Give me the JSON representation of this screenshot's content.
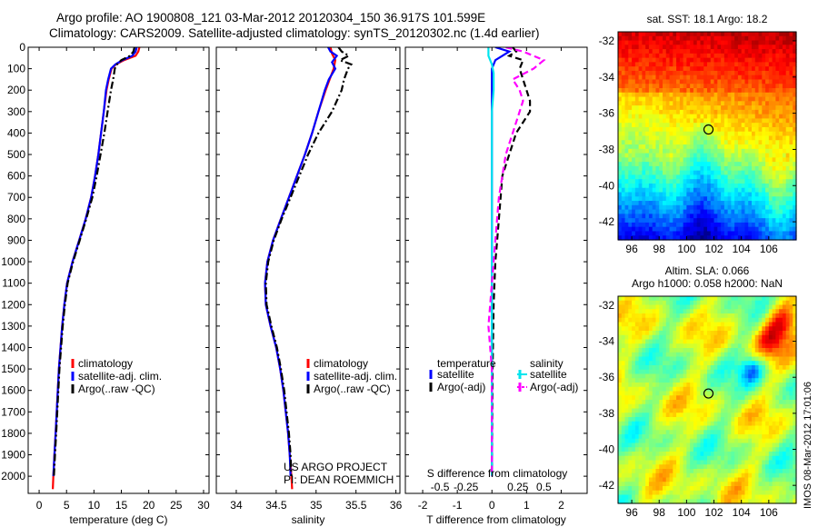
{
  "header": {
    "title_line1": "Argo profile: AO 1900808_121 03-Mar-2012 20120304_150 36.917S 101.599E",
    "title_line2": "Climatology: CARS2009. Satellite-adjusted climatology: synTS_20120302.nc (1.4d earlier)"
  },
  "stamp": "IMOS 08-Mar-2012 17:01:06",
  "colors": {
    "climatology": "#ff0000",
    "satellite_adj": "#0000ff",
    "argo": "#000000",
    "sat_s": "#00e5ee",
    "argo_s": "#ff00ff"
  },
  "chart_data": [
    {
      "id": "temperature",
      "type": "line",
      "xlabel": "temperature (deg C)",
      "ylabel": "",
      "xlim": [
        -2,
        31
      ],
      "ylim": [
        0,
        2080
      ],
      "y_inverted": true,
      "xticks": [
        0,
        5,
        10,
        15,
        20,
        25,
        30
      ],
      "yticks": [
        0,
        100,
        200,
        300,
        400,
        500,
        600,
        700,
        800,
        900,
        1000,
        1100,
        1200,
        1300,
        1400,
        1500,
        1600,
        1700,
        1800,
        1900,
        2000
      ],
      "legend": [
        "climatology",
        "satellite-adj. clim.",
        "Argo(..raw -QC)"
      ],
      "legend_colors": [
        "#ff0000",
        "#0000ff",
        "#000000"
      ],
      "series": [
        {
          "name": "climatology",
          "style": "solid",
          "color": "#ff0000",
          "points": [
            [
              18.3,
              0
            ],
            [
              18.1,
              20
            ],
            [
              17.6,
              40
            ],
            [
              15.5,
              60
            ],
            [
              14.0,
              80
            ],
            [
              13.2,
              100
            ],
            [
              12.7,
              150
            ],
            [
              12.3,
              200
            ],
            [
              11.8,
              300
            ],
            [
              11.3,
              400
            ],
            [
              10.8,
              500
            ],
            [
              10.2,
              600
            ],
            [
              9.5,
              700
            ],
            [
              8.5,
              800
            ],
            [
              7.3,
              900
            ],
            [
              6.1,
              1000
            ],
            [
              5.1,
              1100
            ],
            [
              4.6,
              1200
            ],
            [
              4.2,
              1300
            ],
            [
              3.9,
              1400
            ],
            [
              3.6,
              1500
            ],
            [
              3.4,
              1600
            ],
            [
              3.2,
              1700
            ],
            [
              3.0,
              1800
            ],
            [
              2.8,
              1900
            ],
            [
              2.6,
              2000
            ],
            [
              2.5,
              2060
            ]
          ]
        },
        {
          "name": "satellite-adj. clim.",
          "style": "solid",
          "color": "#0000ff",
          "points": [
            [
              17.8,
              0
            ],
            [
              17.6,
              20
            ],
            [
              17.0,
              40
            ],
            [
              15.2,
              60
            ],
            [
              13.9,
              80
            ],
            [
              13.1,
              100
            ],
            [
              12.6,
              150
            ],
            [
              12.2,
              200
            ],
            [
              11.8,
              300
            ],
            [
              11.3,
              400
            ],
            [
              10.8,
              500
            ],
            [
              10.2,
              600
            ],
            [
              9.5,
              700
            ],
            [
              8.5,
              800
            ],
            [
              7.3,
              900
            ],
            [
              6.1,
              1000
            ],
            [
              5.1,
              1100
            ],
            [
              4.6,
              1200
            ],
            [
              4.2,
              1300
            ],
            [
              3.9,
              1400
            ],
            [
              3.6,
              1500
            ],
            [
              3.4,
              1600
            ],
            [
              3.2,
              1700
            ],
            [
              3.0,
              1800
            ],
            [
              2.8,
              1900
            ],
            [
              2.6,
              2000
            ]
          ]
        },
        {
          "name": "Argo(..raw -QC)",
          "style": "dashdot",
          "color": "#000000",
          "points": [
            [
              17.4,
              0
            ],
            [
              17.2,
              20
            ],
            [
              16.6,
              40
            ],
            [
              15.0,
              60
            ],
            [
              14.2,
              80
            ],
            [
              13.8,
              100
            ],
            [
              13.5,
              150
            ],
            [
              13.1,
              200
            ],
            [
              12.5,
              300
            ],
            [
              11.9,
              400
            ],
            [
              11.2,
              500
            ],
            [
              10.5,
              600
            ],
            [
              9.7,
              700
            ],
            [
              8.6,
              800
            ],
            [
              7.4,
              900
            ],
            [
              6.2,
              1000
            ],
            [
              5.2,
              1100
            ],
            [
              4.7,
              1200
            ],
            [
              4.3,
              1300
            ],
            [
              4.0,
              1400
            ],
            [
              3.7,
              1500
            ],
            [
              3.5,
              1600
            ],
            [
              3.3,
              1700
            ],
            [
              3.1,
              1800
            ],
            [
              2.9,
              1900
            ],
            [
              2.7,
              2000
            ]
          ]
        }
      ]
    },
    {
      "id": "salinity",
      "type": "line",
      "xlabel": "salinity",
      "ylabel": "",
      "xlim": [
        33.75,
        36.05
      ],
      "ylim": [
        0,
        2080
      ],
      "y_inverted": true,
      "xticks": [
        34,
        34.5,
        35,
        35.5,
        36
      ],
      "legend": [
        "climatology",
        "satellite-adj. clim.",
        "Argo(..raw -QC)"
      ],
      "legend_colors": [
        "#ff0000",
        "#0000ff",
        "#000000"
      ],
      "annotation": [
        "US ARGO PROJECT",
        "PI: DEAN ROEMMICH"
      ],
      "series": [
        {
          "name": "climatology",
          "style": "solid",
          "color": "#ff0000",
          "points": [
            [
              35.18,
              0
            ],
            [
              35.2,
              30
            ],
            [
              35.24,
              60
            ],
            [
              35.22,
              100
            ],
            [
              35.17,
              150
            ],
            [
              35.12,
              200
            ],
            [
              35.03,
              300
            ],
            [
              34.95,
              400
            ],
            [
              34.86,
              500
            ],
            [
              34.76,
              600
            ],
            [
              34.66,
              700
            ],
            [
              34.56,
              800
            ],
            [
              34.46,
              900
            ],
            [
              34.39,
              1000
            ],
            [
              34.36,
              1100
            ],
            [
              34.37,
              1200
            ],
            [
              34.43,
              1300
            ],
            [
              34.5,
              1400
            ],
            [
              34.55,
              1500
            ],
            [
              34.59,
              1600
            ],
            [
              34.62,
              1700
            ],
            [
              34.65,
              1800
            ],
            [
              34.67,
              1900
            ],
            [
              34.69,
              2000
            ],
            [
              34.7,
              2060
            ]
          ]
        },
        {
          "name": "satellite-adj. clim.",
          "style": "solid",
          "color": "#0000ff",
          "points": [
            [
              35.15,
              0
            ],
            [
              35.18,
              20
            ],
            [
              35.26,
              40
            ],
            [
              35.2,
              70
            ],
            [
              35.24,
              100
            ],
            [
              35.16,
              150
            ],
            [
              35.11,
              200
            ],
            [
              35.03,
              300
            ],
            [
              34.95,
              400
            ],
            [
              34.86,
              500
            ],
            [
              34.76,
              600
            ],
            [
              34.66,
              700
            ],
            [
              34.56,
              800
            ],
            [
              34.46,
              900
            ],
            [
              34.39,
              1000
            ],
            [
              34.36,
              1100
            ],
            [
              34.37,
              1200
            ],
            [
              34.43,
              1300
            ],
            [
              34.5,
              1400
            ],
            [
              34.55,
              1500
            ],
            [
              34.59,
              1600
            ],
            [
              34.62,
              1700
            ],
            [
              34.65,
              1800
            ],
            [
              34.67,
              1900
            ],
            [
              34.68,
              2000
            ]
          ]
        },
        {
          "name": "Argo(..raw -QC)",
          "style": "dashdot",
          "color": "#000000",
          "points": [
            [
              35.28,
              0
            ],
            [
              35.32,
              20
            ],
            [
              35.41,
              40
            ],
            [
              35.3,
              60
            ],
            [
              35.44,
              80
            ],
            [
              35.4,
              100
            ],
            [
              35.35,
              150
            ],
            [
              35.32,
              200
            ],
            [
              35.2,
              300
            ],
            [
              35.03,
              400
            ],
            [
              34.9,
              500
            ],
            [
              34.79,
              600
            ],
            [
              34.68,
              700
            ],
            [
              34.57,
              800
            ],
            [
              34.47,
              900
            ],
            [
              34.4,
              1000
            ],
            [
              34.37,
              1100
            ],
            [
              34.38,
              1200
            ],
            [
              34.44,
              1300
            ],
            [
              34.51,
              1400
            ],
            [
              34.56,
              1500
            ],
            [
              34.6,
              1600
            ],
            [
              34.63,
              1700
            ],
            [
              34.66,
              1800
            ],
            [
              34.68,
              1900
            ],
            [
              34.69,
              2000
            ]
          ]
        }
      ]
    },
    {
      "id": "difference",
      "type": "line",
      "xlabel": "T difference from climatology",
      "xlabel_top": "S difference from climatology",
      "xlim": [
        -2.5,
        2.75
      ],
      "ylim": [
        0,
        2080
      ],
      "y_inverted": true,
      "xticks": [
        -2,
        -1,
        0,
        1,
        2
      ],
      "xtick_labels": [
        "-2",
        "-1",
        "0",
        "1",
        "2"
      ],
      "xticks_top": [
        -1.5,
        -0.75,
        0.75,
        1.5
      ],
      "xtick_labels_top": [
        "-0.5",
        "-0.25",
        "0.25",
        "0.5"
      ],
      "legend_titles": [
        "temperature",
        "salinity"
      ],
      "legend_left": [
        "satellite",
        "Argo(-adj)"
      ],
      "legend_right": [
        "satellite",
        "Argo(-adj)"
      ],
      "series": [
        {
          "name": "temperature satellite",
          "style": "solid",
          "color": "#0000ff",
          "points": [
            [
              0.1,
              0
            ],
            [
              0.5,
              20
            ],
            [
              0.3,
              40
            ],
            [
              0.1,
              60
            ],
            [
              0.0,
              100
            ],
            [
              0.0,
              200
            ],
            [
              0.0,
              400
            ],
            [
              0.0,
              800
            ],
            [
              0.0,
              1200
            ],
            [
              0.0,
              1600
            ],
            [
              0.0,
              2000
            ]
          ]
        },
        {
          "name": "temperature Argo(-adj)",
          "style": "dashed",
          "color": "#000000",
          "points": [
            [
              0.6,
              0
            ],
            [
              0.7,
              20
            ],
            [
              0.5,
              40
            ],
            [
              0.9,
              60
            ],
            [
              0.8,
              100
            ],
            [
              0.9,
              150
            ],
            [
              1.0,
              200
            ],
            [
              1.1,
              250
            ],
            [
              1.1,
              300
            ],
            [
              0.9,
              350
            ],
            [
              0.7,
              400
            ],
            [
              0.5,
              500
            ],
            [
              0.3,
              600
            ],
            [
              0.25,
              700
            ],
            [
              0.2,
              800
            ],
            [
              0.15,
              900
            ],
            [
              0.1,
              1000
            ],
            [
              0.05,
              1200
            ],
            [
              0.02,
              1500
            ],
            [
              0.0,
              2000
            ]
          ]
        },
        {
          "name": "salinity satellite",
          "style": "solid",
          "color": "#00e5ee",
          "points": [
            [
              -0.1,
              0
            ],
            [
              -0.1,
              40
            ],
            [
              0.0,
              80
            ],
            [
              0.05,
              120
            ],
            [
              0.05,
              200
            ],
            [
              0.0,
              300
            ],
            [
              0.0,
              400
            ],
            [
              0.0,
              700
            ],
            [
              0.0,
              1000
            ],
            [
              0.0,
              1400
            ],
            [
              0.0,
              1800
            ],
            [
              0.0,
              2000
            ]
          ]
        },
        {
          "name": "salinity Argo(-adj)",
          "style": "dashed",
          "color": "#ff00ff",
          "points": [
            [
              0.4,
              0
            ],
            [
              0.9,
              20
            ],
            [
              1.5,
              60
            ],
            [
              1.2,
              100
            ],
            [
              0.6,
              150
            ],
            [
              0.8,
              200
            ],
            [
              0.9,
              250
            ],
            [
              0.8,
              300
            ],
            [
              0.6,
              400
            ],
            [
              0.4,
              500
            ],
            [
              0.3,
              600
            ],
            [
              0.2,
              700
            ],
            [
              0.1,
              900
            ],
            [
              0.0,
              1100
            ],
            [
              -0.1,
              1300
            ],
            [
              0.0,
              1500
            ],
            [
              0.0,
              2000
            ]
          ]
        }
      ]
    },
    {
      "id": "sst-map",
      "type": "heatmap",
      "title": "sat. SST: 18.1  Argo: 18.2",
      "xlim": [
        95,
        108
      ],
      "ylim": [
        -43,
        -31.5
      ],
      "xticks": [
        96,
        98,
        100,
        102,
        104,
        106
      ],
      "yticks": [
        -32,
        -34,
        -36,
        -38,
        -40,
        -42
      ],
      "marker": {
        "lon": 101.6,
        "lat": -36.9
      }
    },
    {
      "id": "sla-map",
      "type": "heatmap",
      "title_line1": "Altim. SLA: 0.066",
      "title_line2": "Argo h1000: 0.058  h2000: NaN",
      "xlim": [
        95,
        108
      ],
      "ylim": [
        -43,
        -31.5
      ],
      "xticks": [
        96,
        98,
        100,
        102,
        104,
        106
      ],
      "yticks": [
        -32,
        -34,
        -36,
        -38,
        -40,
        -42
      ],
      "marker": {
        "lon": 101.6,
        "lat": -36.9
      }
    }
  ]
}
